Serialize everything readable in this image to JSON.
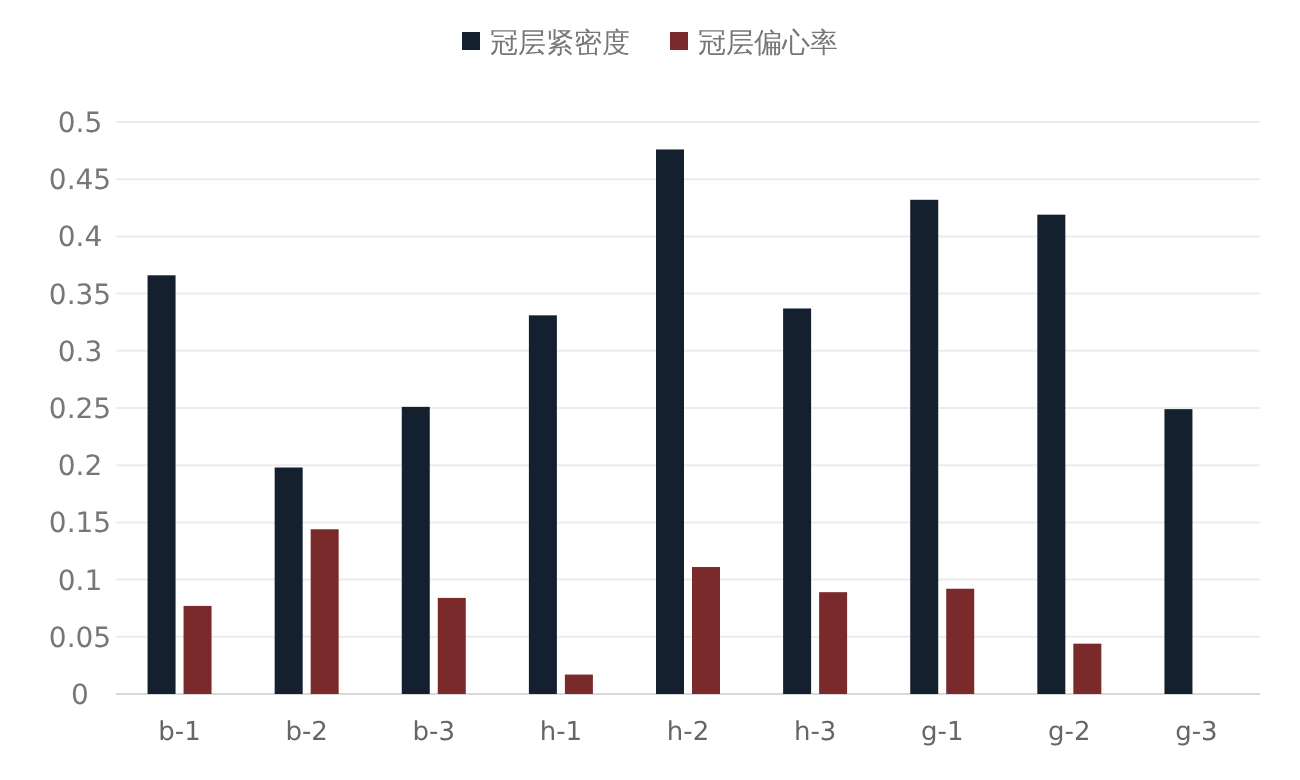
{
  "chart_data": {
    "type": "bar",
    "categories": [
      "b-1",
      "b-2",
      "b-3",
      "h-1",
      "h-2",
      "h-3",
      "g-1",
      "g-2",
      "g-3"
    ],
    "series": [
      {
        "name": "冠层紧密度",
        "color": "#15202f",
        "values": [
          0.366,
          0.198,
          0.251,
          0.331,
          0.476,
          0.337,
          0.432,
          0.419,
          0.249
        ]
      },
      {
        "name": "冠层偏心率",
        "color": "#7b2a2c",
        "values": [
          0.077,
          0.144,
          0.084,
          0.017,
          0.111,
          0.089,
          0.092,
          0.044,
          null
        ]
      }
    ],
    "ylim": [
      0,
      0.5
    ],
    "yticks": [
      0,
      0.05,
      0.1,
      0.15,
      0.2,
      0.25,
      0.3,
      0.35,
      0.4,
      0.45,
      0.5
    ],
    "grid": "y",
    "legend": "top"
  }
}
